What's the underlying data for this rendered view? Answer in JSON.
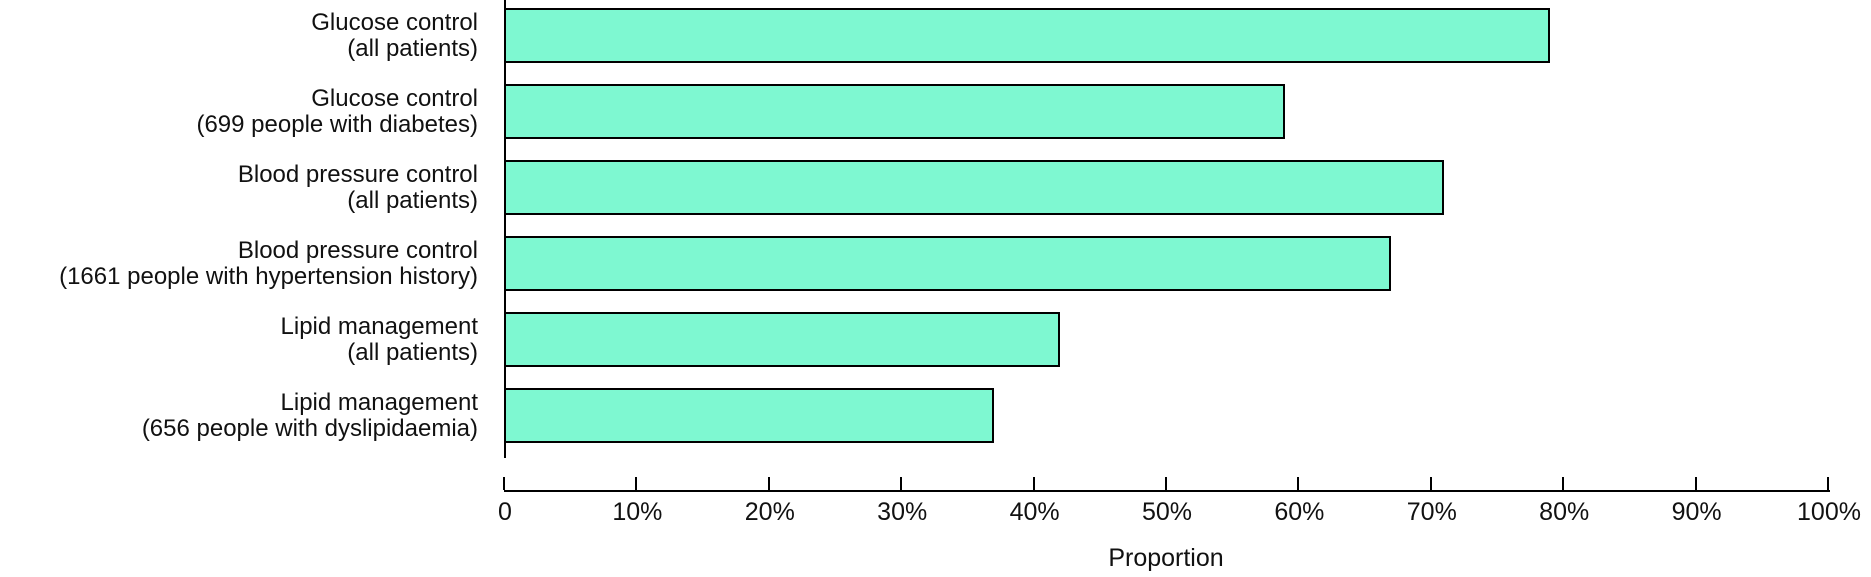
{
  "chart_data": {
    "type": "bar",
    "orientation": "horizontal",
    "title": "",
    "xlabel": "Proportion",
    "ylabel": "",
    "xlim": [
      0,
      100
    ],
    "grid": false,
    "legend": null,
    "x_ticks": [
      "0",
      "10%",
      "20%",
      "30%",
      "40%",
      "50%",
      "60%",
      "70%",
      "80%",
      "90%",
      "100%"
    ],
    "bars": [
      {
        "label_line1": "Glucose control",
        "label_line2": "(all patients)",
        "value": 79
      },
      {
        "label_line1": "Glucose control",
        "label_line2": "(699 people with diabetes)",
        "value": 59
      },
      {
        "label_line1": "Blood pressure control",
        "label_line2": "(all patients)",
        "value": 71
      },
      {
        "label_line1": "Blood pressure control",
        "label_line2": "(1661 people with hypertension history)",
        "value": 67
      },
      {
        "label_line1": "Lipid management",
        "label_line2": "(all patients)",
        "value": 42
      },
      {
        "label_line1": "Lipid management",
        "label_line2": "(656 people with dyslipidaemia)",
        "value": 37
      }
    ],
    "colors": {
      "bar_fill": "#7EF8D1",
      "bar_border": "#000000",
      "axis": "#000000",
      "text": "#111111",
      "background": "#FFFFFF"
    }
  }
}
